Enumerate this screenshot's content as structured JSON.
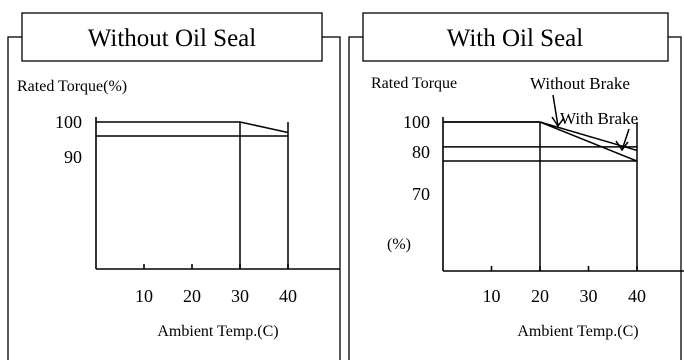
{
  "chart_data": [
    {
      "type": "line",
      "title": "Without Oil Seal",
      "ylabel": "Rated Torque(%)",
      "xlabel": "Ambient Temp.(C)",
      "xticks": [
        10,
        20,
        30,
        40
      ],
      "yticks": [
        {
          "value": 100,
          "label": "100"
        },
        {
          "value": 90,
          "label": "90"
        }
      ],
      "series": [
        {
          "x": [
            0,
            30,
            40
          ],
          "y": [
            100,
            100,
            97
          ]
        },
        {
          "x": [
            0,
            40
          ],
          "y": [
            96,
            96
          ]
        }
      ],
      "verticals": [
        30,
        40
      ]
    },
    {
      "type": "line",
      "title": "With Oil Seal",
      "ylabel": "Rated Torque",
      "yunit_label": "(%)",
      "xlabel": "Ambient Temp.(C)",
      "xticks": [
        10,
        20,
        30,
        40
      ],
      "yticks": [
        {
          "value": 100,
          "label": "100"
        },
        {
          "value": 80,
          "label": "80"
        },
        {
          "value": 70,
          "label": "70"
        }
      ],
      "series": [
        {
          "name": "Without Brake",
          "x": [
            0,
            20,
            40
          ],
          "y": [
            100,
            100,
            92
          ]
        },
        {
          "name": "With Brake",
          "x": [
            0,
            20,
            40
          ],
          "y": [
            100,
            100,
            89
          ]
        },
        {
          "x": [
            0,
            40
          ],
          "y": [
            93,
            93
          ]
        },
        {
          "x": [
            0,
            40
          ],
          "y": [
            89,
            89
          ]
        }
      ],
      "verticals": [
        20,
        40
      ]
    }
  ]
}
